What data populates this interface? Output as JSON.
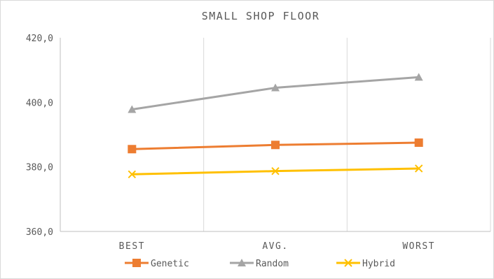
{
  "chart_data": {
    "type": "line",
    "title": "SMALL SHOP FLOOR",
    "categories": [
      "BEST",
      "AVG.",
      "WORST"
    ],
    "ylim": [
      360,
      420
    ],
    "yticks": [
      "360,0",
      "380,0",
      "400,0",
      "420,0"
    ],
    "grid": "vertical",
    "legend_position": "bottom",
    "series": [
      {
        "name": "Genetic",
        "values": [
          385.5,
          386.8,
          387.5
        ],
        "color": "#ED7D31",
        "marker": "square"
      },
      {
        "name": "Random",
        "values": [
          397.8,
          404.5,
          407.8
        ],
        "color": "#A5A5A5",
        "marker": "triangle"
      },
      {
        "name": "Hybrid",
        "values": [
          377.7,
          378.7,
          379.5
        ],
        "color": "#FFC000",
        "marker": "x"
      }
    ]
  }
}
